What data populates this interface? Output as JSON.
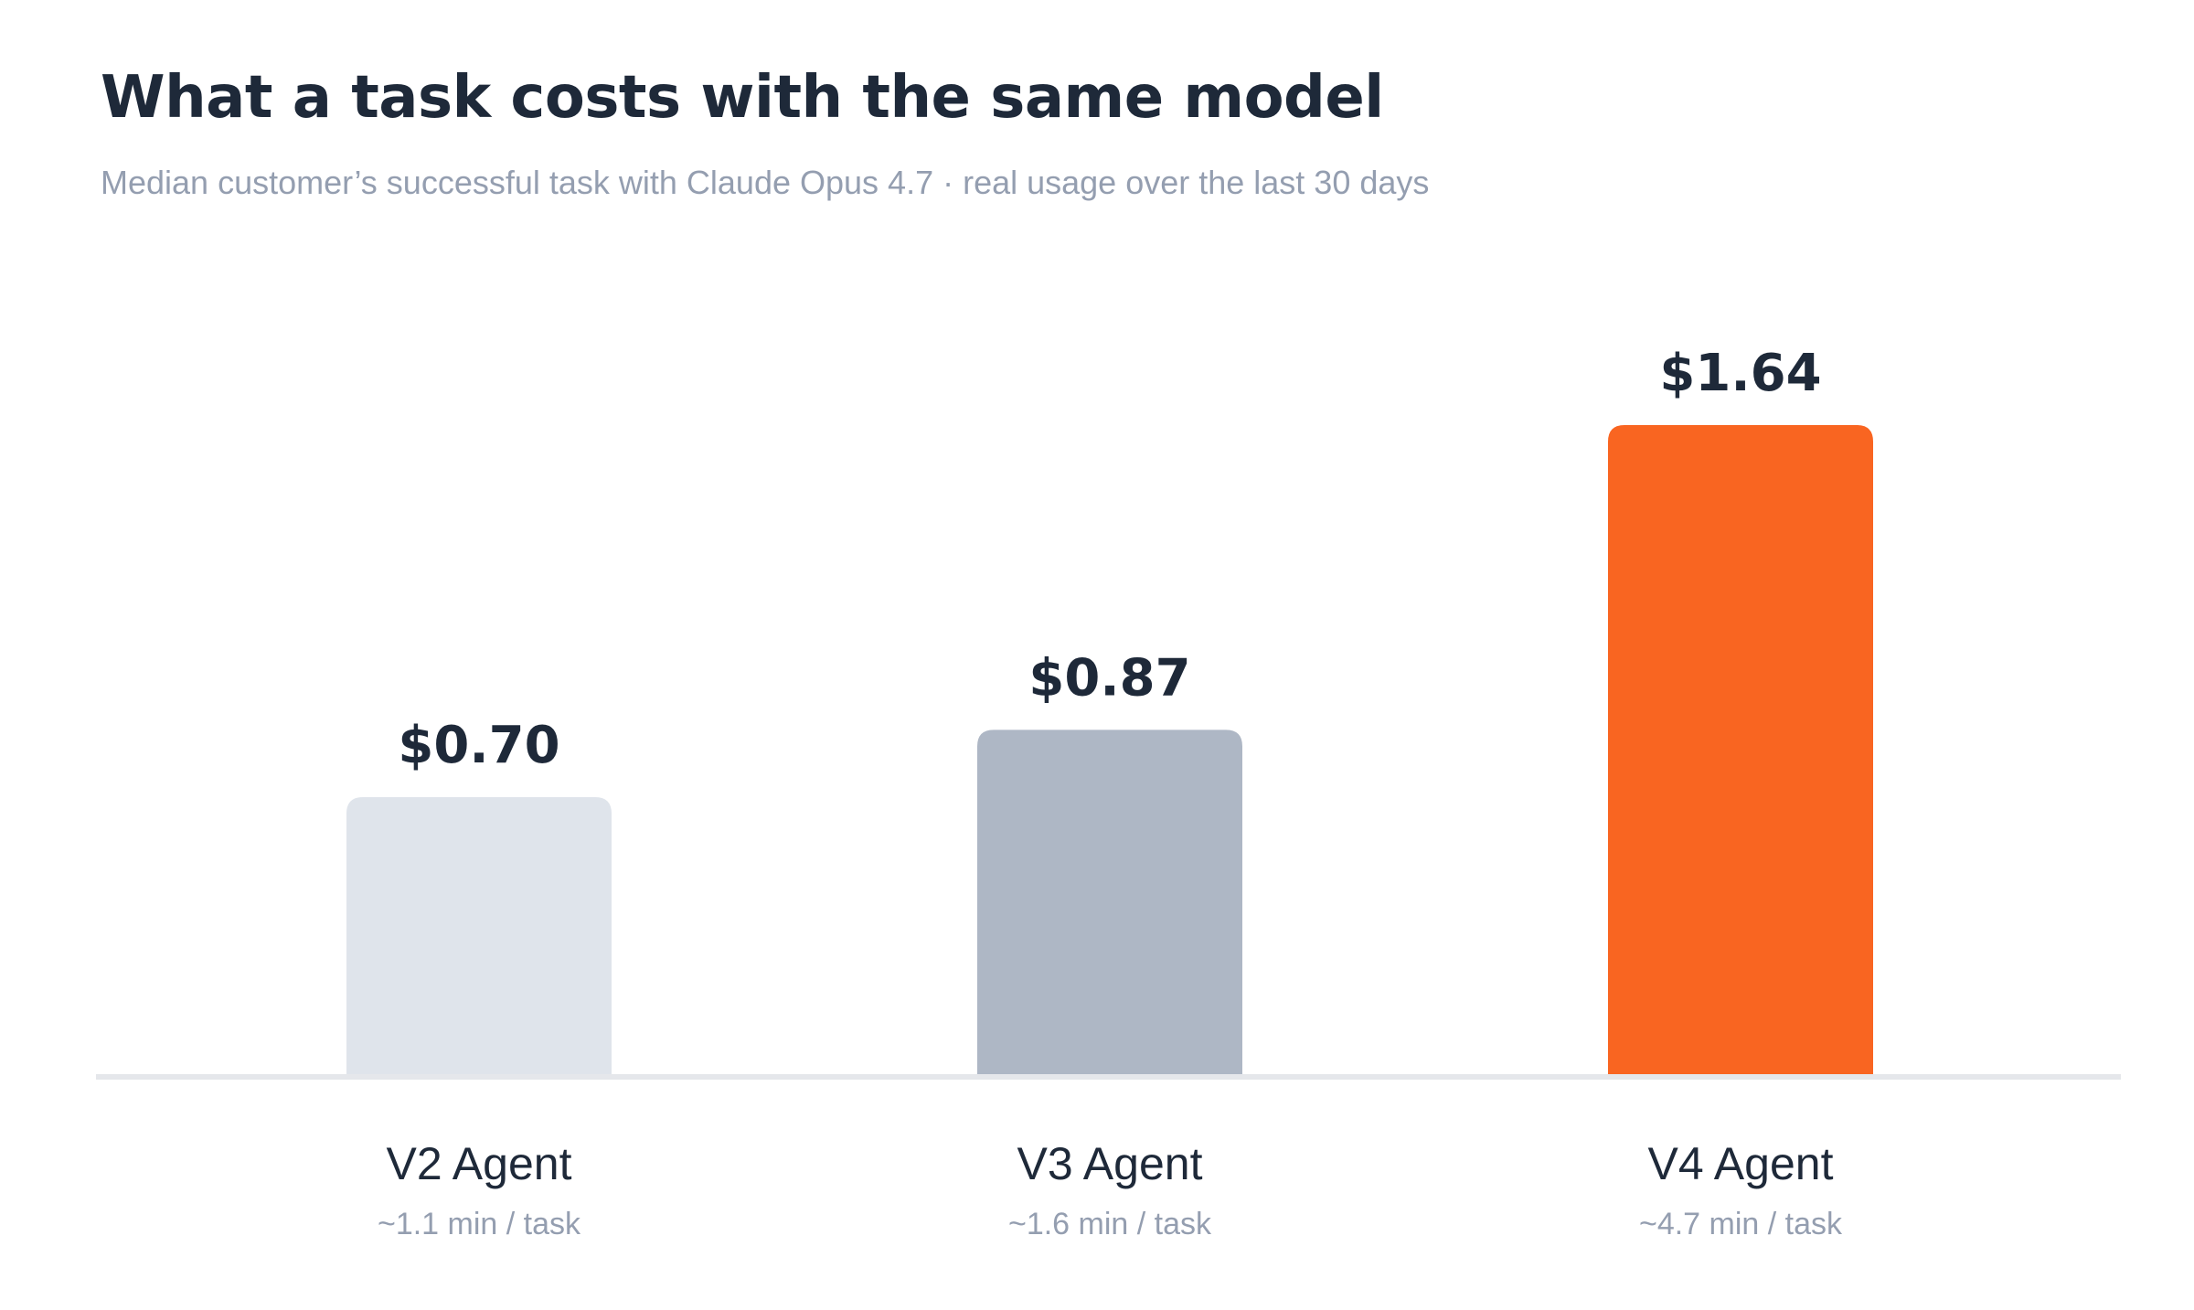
{
  "chart_data": {
    "type": "bar",
    "title": "What a task costs with the same model",
    "subtitle": "Median customer’s successful task with Claude Opus 4.7 · real usage over the last 30 days",
    "categories": [
      "V2 Agent",
      "V3 Agent",
      "V4 Agent"
    ],
    "category_sublabels": [
      "~1.1 min / task",
      "~1.6 min / task",
      "~4.7 min / task"
    ],
    "values": [
      0.7,
      0.87,
      1.64
    ],
    "value_labels": [
      "$0.70",
      "$0.87",
      "$1.64"
    ],
    "bar_colors": [
      "#dfe4eb",
      "#aeb7c5",
      "#f96521"
    ],
    "ylim": [
      0,
      1.64
    ],
    "xlabel": "",
    "ylabel": "",
    "grid": false,
    "legend": "none"
  },
  "colors": {
    "title": "#1e2939",
    "subtitle": "#949eb0",
    "value_label": "#1e2939",
    "category_label": "#1e2939",
    "sublabel": "#949eb0",
    "baseline": "#e5e7eb",
    "background": "#ffffff"
  }
}
